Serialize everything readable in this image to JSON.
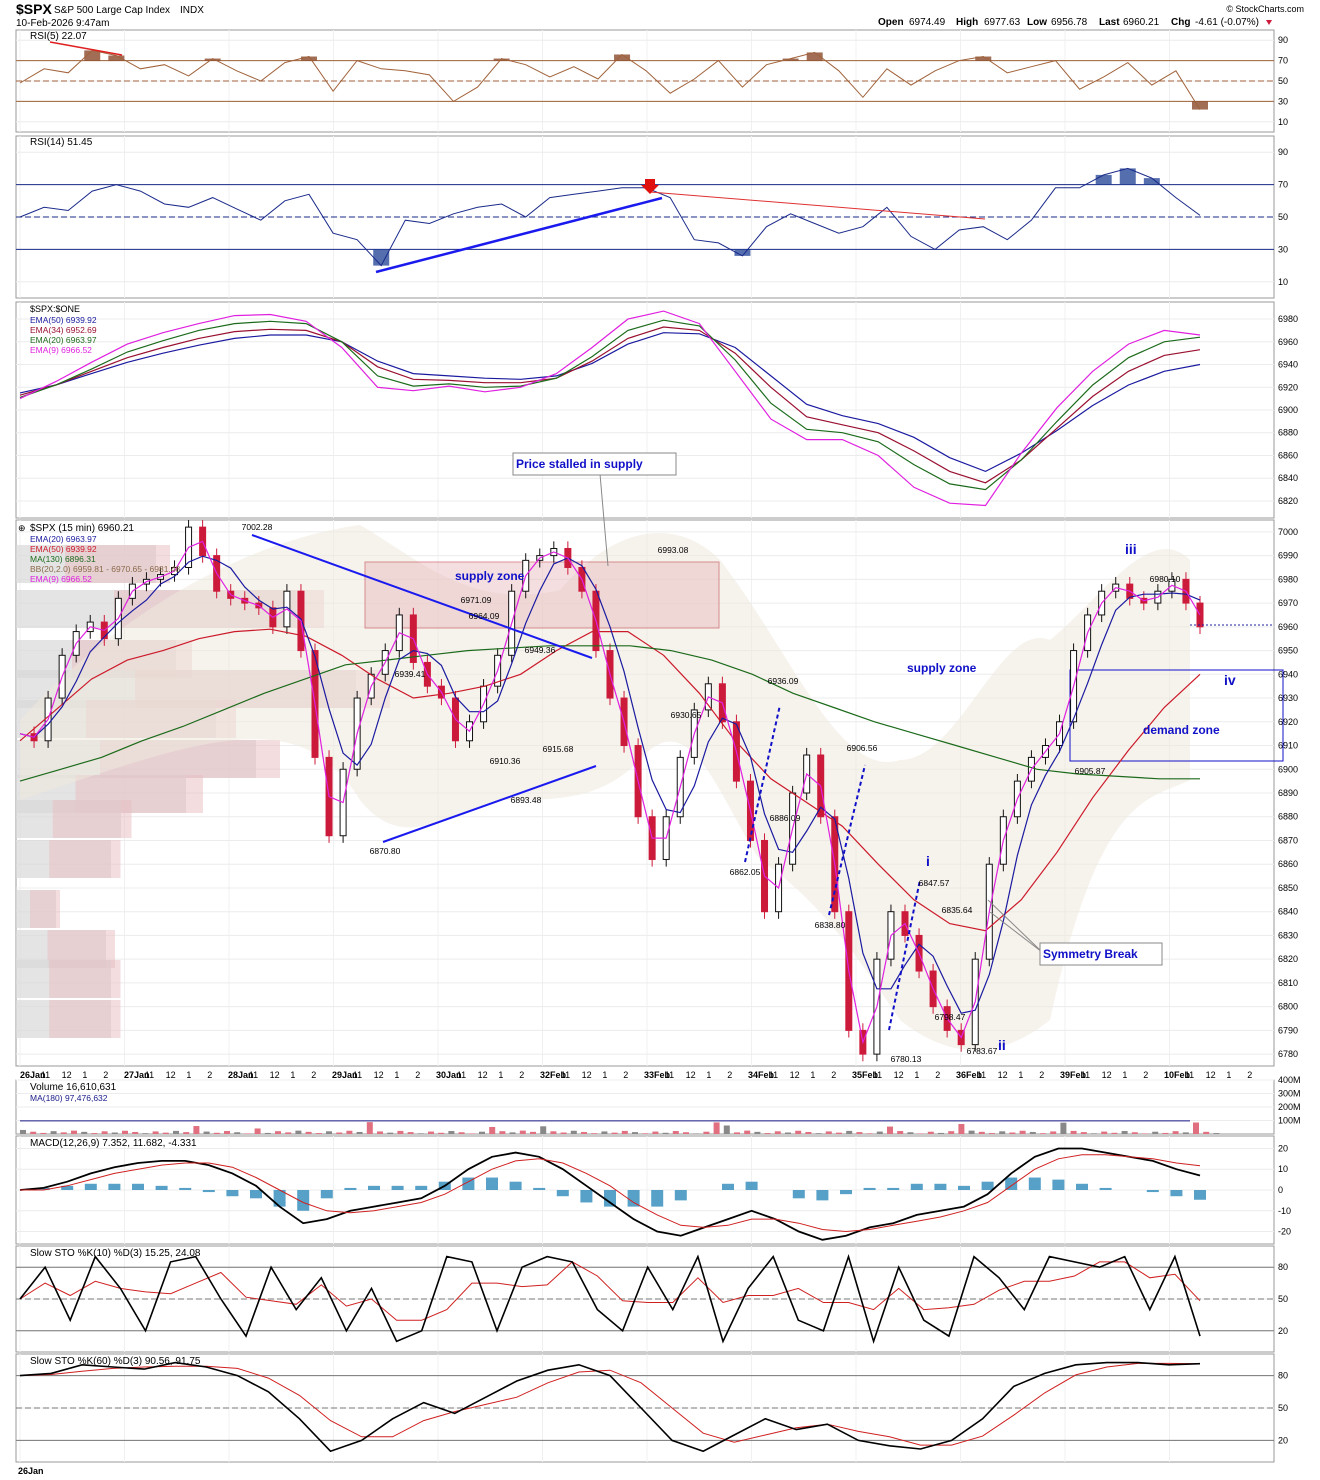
{
  "header": {
    "symbol": "$SPX",
    "name": "S&P 500 Large Cap Index",
    "exchange": "INDX",
    "datetime": "10-Feb-2026 9:47am",
    "source": "© StockCharts.com",
    "open_label": "Open",
    "open": "6974.49",
    "high_label": "High",
    "high": "6977.63",
    "low_label": "Low",
    "low": "6956.78",
    "last_label": "Last",
    "last": "6960.21",
    "chg_label": "Chg",
    "chg": "-4.61 (-0.07%)"
  },
  "colors": {
    "ema20": "#1a1aa0",
    "ema50": "#cc1a2a",
    "ma130": "#1c6b1c",
    "ema9": "#e020e0",
    "ema34": "#9a1030",
    "rsi5": "#a0623a",
    "rsi14": "#1a2a8a",
    "up": "#111111",
    "down": "#cc1a3a",
    "annot": "#1010c8"
  },
  "chart_data": [
    {
      "type": "line",
      "title": "RSI(5) 22.07",
      "y_ticks": [
        90,
        70,
        50,
        30,
        10
      ],
      "ylim": [
        0,
        100
      ],
      "series": [
        {
          "name": "RSI(5)",
          "values": [
            48,
            62,
            58,
            80,
            75,
            62,
            66,
            55,
            72,
            60,
            50,
            68,
            74,
            40,
            70,
            62,
            60,
            56,
            30,
            44,
            72,
            66,
            54,
            64,
            52,
            76,
            60,
            38,
            52,
            70,
            44,
            66,
            72,
            78,
            60,
            34,
            62,
            46,
            60,
            70,
            74,
            58,
            64,
            70,
            42,
            54,
            68,
            46,
            60,
            22
          ]
        }
      ]
    },
    {
      "type": "line",
      "title": "RSI(14) 51.45",
      "y_ticks": [
        90,
        70,
        50,
        30,
        10
      ],
      "ylim": [
        0,
        100
      ],
      "series": [
        {
          "name": "RSI(14)",
          "values": [
            50,
            56,
            54,
            66,
            70,
            66,
            58,
            56,
            62,
            55,
            48,
            60,
            64,
            40,
            36,
            20,
            48,
            46,
            52,
            56,
            58,
            50,
            62,
            64,
            66,
            68,
            68,
            62,
            36,
            34,
            26,
            44,
            52,
            46,
            40,
            44,
            56,
            38,
            30,
            42,
            44,
            36,
            48,
            68,
            68,
            76,
            80,
            74,
            62,
            51
          ]
        }
      ]
    },
    {
      "type": "line",
      "title": "$SPX:$ONE",
      "y_ticks": [
        6980,
        6960,
        6940,
        6920,
        6900,
        6880,
        6860,
        6840,
        6820
      ],
      "ylim": [
        6805,
        6995
      ],
      "series": [
        {
          "name": "EMA(50) 6939.92",
          "values": [
            6915,
            6922,
            6932,
            6942,
            6950,
            6957,
            6963,
            6966,
            6966,
            6960,
            6943,
            6932,
            6930,
            6928,
            6927,
            6930,
            6941,
            6958,
            6968,
            6967,
            6955,
            6930,
            6905,
            6895,
            6888,
            6876,
            6858,
            6846,
            6862,
            6882,
            6904,
            6922,
            6934,
            6940
          ]
        },
        {
          "name": "EMA(34) 6952.69",
          "values": [
            6913,
            6922,
            6934,
            6946,
            6955,
            6963,
            6969,
            6971,
            6970,
            6960,
            6938,
            6927,
            6926,
            6924,
            6924,
            6928,
            6943,
            6963,
            6973,
            6970,
            6950,
            6920,
            6894,
            6887,
            6880,
            6864,
            6846,
            6836,
            6856,
            6884,
            6912,
            6934,
            6948,
            6953
          ]
        },
        {
          "name": "EMA(20) 6963.97",
          "values": [
            6911,
            6922,
            6936,
            6951,
            6961,
            6970,
            6976,
            6978,
            6976,
            6960,
            6930,
            6921,
            6923,
            6920,
            6921,
            6928,
            6947,
            6970,
            6979,
            6974,
            6944,
            6906,
            6883,
            6880,
            6872,
            6852,
            6835,
            6830,
            6856,
            6890,
            6922,
            6946,
            6960,
            6964
          ]
        },
        {
          "name": "EMA(9) 6966.52",
          "values": [
            6910,
            6925,
            6942,
            6958,
            6968,
            6976,
            6983,
            6984,
            6978,
            6955,
            6920,
            6917,
            6921,
            6916,
            6920,
            6932,
            6955,
            6980,
            6987,
            6976,
            6934,
            6892,
            6874,
            6874,
            6860,
            6832,
            6818,
            6816,
            6862,
            6902,
            6934,
            6958,
            6970,
            6966
          ]
        }
      ]
    },
    {
      "type": "line",
      "title": "$SPX (15 min) 6960.21",
      "y_ticks": [
        7000,
        6990,
        6980,
        6970,
        6960,
        6950,
        6940,
        6930,
        6920,
        6910,
        6900,
        6890,
        6880,
        6870,
        6860,
        6850,
        6840,
        6830,
        6820,
        6810,
        6800,
        6790,
        6780
      ],
      "ylim": [
        6775,
        7005
      ],
      "x_ticks": [
        "26Jan",
        "11",
        "12",
        "1",
        "2",
        "27Jan",
        "11",
        "12",
        "1",
        "2",
        "28Jan",
        "11",
        "12",
        "1",
        "2",
        "29Jan",
        "11",
        "12",
        "1",
        "2",
        "30Jan",
        "11",
        "12",
        "1",
        "2",
        "32Feb",
        "11",
        "12",
        "1",
        "2",
        "33Feb",
        "11",
        "12",
        "1",
        "2",
        "34Feb",
        "11",
        "12",
        "1",
        "2",
        "35Feb",
        "11",
        "12",
        "1",
        "2",
        "36Feb",
        "11",
        "12",
        "1",
        "2",
        "39Feb",
        "11",
        "12",
        "1",
        "2",
        "10Feb",
        "11",
        "12",
        "1",
        "2"
      ],
      "legend": [
        "EMA(20) 6963.97",
        "EMA(50) 6939.92",
        "MA(130) 6896.31",
        "BB(20,2.0) 6959.81 - 6970.65 - 6981.48",
        "EMA(9) 6966.52"
      ],
      "series": [
        {
          "name": "price",
          "values": [
            6915,
            6912,
            6930,
            6948,
            6958,
            6962,
            6955,
            6972,
            6978,
            6980,
            6982,
            6985,
            7002,
            6990,
            6975,
            6972,
            6970,
            6968,
            6960,
            6975,
            6950,
            6905,
            6872,
            6900,
            6930,
            6940,
            6950,
            6965,
            6945,
            6935,
            6930,
            6912,
            6920,
            6935,
            6948,
            6975,
            6988,
            6990,
            6993,
            6985,
            6975,
            6950,
            6930,
            6910,
            6880,
            6862,
            6880,
            6905,
            6925,
            6936,
            6920,
            6895,
            6870,
            6840,
            6860,
            6890,
            6906,
            6880,
            6840,
            6790,
            6780,
            6820,
            6840,
            6830,
            6815,
            6800,
            6790,
            6784,
            6820,
            6860,
            6880,
            6895,
            6905,
            6910,
            6920,
            6950,
            6965,
            6975,
            6978,
            6972,
            6970,
            6975,
            6980,
            6970,
            6960
          ]
        },
        {
          "name": "EMA(50)",
          "values": [
            6912,
            6925,
            6938,
            6946,
            6950,
            6955,
            6958,
            6959,
            6956,
            6948,
            6938,
            6930,
            6932,
            6935,
            6940,
            6950,
            6958,
            6958,
            6948,
            6932,
            6912,
            6896,
            6886,
            6876,
            6860,
            6845,
            6835,
            6832,
            6845,
            6865,
            6888,
            6908,
            6926,
            6940
          ]
        },
        {
          "name": "MA(130)",
          "values": [
            6895,
            6900,
            6905,
            6912,
            6918,
            6925,
            6932,
            6938,
            6944,
            6946,
            6948,
            6950,
            6951,
            6952,
            6952,
            6952,
            6950,
            6946,
            6940,
            6932,
            6926,
            6920,
            6915,
            6910,
            6905,
            6900,
            6898,
            6897,
            6896,
            6896
          ]
        }
      ],
      "annotations": [
        "7002.28",
        "6971.09",
        "6964.09",
        "6949.36",
        "6939.41",
        "6910.36",
        "6915.68",
        "6893.48",
        "6870.80",
        "6993.08",
        "6930.65",
        "6936.09",
        "6886.09",
        "6862.05",
        "6906.56",
        "6838.80",
        "6847.57",
        "6835.64",
        "6798.47",
        "6780.13",
        "6783.67",
        "6980.10",
        "6905.87",
        "supply zone",
        "supply zone",
        "demand zone",
        "Price stalled in supply",
        "Symmetry Break",
        "i",
        "ii",
        "iii",
        "iv"
      ]
    },
    {
      "type": "bar",
      "title": "Volume 16,610,631",
      "legend": [
        "MA(180) 97,476,632"
      ],
      "y_ticks": [
        "400M",
        "300M",
        "200M",
        "100M"
      ],
      "ylim": [
        0,
        400
      ]
    },
    {
      "type": "line",
      "title": "MACD(12,26,9) 7.352, 11.682, -4.331",
      "y_ticks": [
        20,
        10,
        0,
        -10,
        -20
      ],
      "ylim": [
        -26,
        26
      ],
      "series": [
        {
          "name": "MACD",
          "values": [
            0,
            1,
            4,
            8,
            11,
            13,
            14,
            14,
            12,
            8,
            2,
            -8,
            -16,
            -14,
            -10,
            -8,
            -6,
            -4,
            2,
            10,
            16,
            18,
            16,
            10,
            2,
            -6,
            -14,
            -20,
            -22,
            -18,
            -14,
            -10,
            -14,
            -20,
            -24,
            -22,
            -18,
            -16,
            -12,
            -10,
            -8,
            -2,
            8,
            16,
            20,
            20,
            18,
            16,
            14,
            10,
            7
          ]
        },
        {
          "name": "Signal",
          "values": [
            0,
            0,
            2,
            5,
            8,
            10,
            12,
            13,
            13,
            11,
            6,
            0,
            -6,
            -10,
            -11,
            -10,
            -8,
            -6,
            -2,
            4,
            10,
            14,
            15,
            13,
            8,
            2,
            -6,
            -12,
            -17,
            -18,
            -17,
            -14,
            -14,
            -16,
            -19,
            -20,
            -19,
            -17,
            -15,
            -13,
            -10,
            -6,
            2,
            10,
            15,
            17,
            17,
            16,
            15,
            13,
            11.7
          ]
        }
      ]
    },
    {
      "type": "line",
      "title": "Slow STO %K(10) %D(3) 15.25, 24.08",
      "y_ticks": [
        80,
        50,
        20
      ],
      "ylim": [
        0,
        100
      ],
      "series": [
        {
          "name": "%K(10)",
          "values": [
            50,
            80,
            30,
            90,
            60,
            20,
            85,
            90,
            50,
            15,
            80,
            40,
            70,
            20,
            60,
            10,
            20,
            90,
            85,
            20,
            80,
            90,
            85,
            40,
            20,
            80,
            40,
            90,
            10,
            60,
            90,
            30,
            20,
            90,
            10,
            80,
            30,
            15,
            90,
            70,
            40,
            90,
            85,
            80,
            90,
            40,
            90,
            15
          ]
        }
      ]
    },
    {
      "type": "line",
      "title": "Slow STO %K(60) %D(3) 90.56, 91.75",
      "y_ticks": [
        80,
        50,
        20
      ],
      "ylim": [
        0,
        100
      ],
      "series": [
        {
          "name": "%K(60)",
          "values": [
            80,
            82,
            90,
            88,
            86,
            92,
            88,
            80,
            65,
            40,
            10,
            20,
            40,
            55,
            45,
            60,
            75,
            85,
            90,
            80,
            50,
            20,
            10,
            25,
            40,
            30,
            35,
            20,
            15,
            12,
            20,
            40,
            70,
            82,
            90,
            92,
            92,
            90,
            91
          ]
        }
      ]
    }
  ]
}
